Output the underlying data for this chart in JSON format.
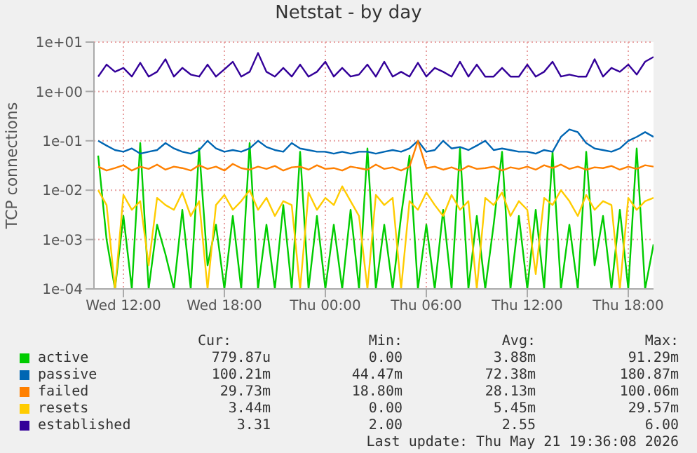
{
  "chart_data": {
    "type": "line",
    "title": "Netstat - by day",
    "ylabel": "TCP connections",
    "log": "y",
    "grid": true,
    "legend": "bottom",
    "x": [
      "2026-05-20T10:30",
      "2026-05-20T11:00",
      "2026-05-20T11:30",
      "2026-05-20T12:00",
      "2026-05-20T12:30",
      "2026-05-20T13:00",
      "2026-05-20T13:30",
      "2026-05-20T14:00",
      "2026-05-20T14:30",
      "2026-05-20T15:00",
      "2026-05-20T15:30",
      "2026-05-20T16:00",
      "2026-05-20T16:30",
      "2026-05-20T17:00",
      "2026-05-20T17:30",
      "2026-05-20T18:00",
      "2026-05-20T18:30",
      "2026-05-20T19:00",
      "2026-05-20T19:30",
      "2026-05-20T20:00",
      "2026-05-20T20:30",
      "2026-05-20T21:00",
      "2026-05-20T21:30",
      "2026-05-20T22:00",
      "2026-05-20T22:30",
      "2026-05-20T23:00",
      "2026-05-20T23:30",
      "2026-05-21T00:00",
      "2026-05-21T00:30",
      "2026-05-21T01:00",
      "2026-05-21T01:30",
      "2026-05-21T02:00",
      "2026-05-21T02:30",
      "2026-05-21T03:00",
      "2026-05-21T03:30",
      "2026-05-21T04:00",
      "2026-05-21T04:30",
      "2026-05-21T05:00",
      "2026-05-21T05:30",
      "2026-05-21T06:00",
      "2026-05-21T06:30",
      "2026-05-21T07:00",
      "2026-05-21T07:30",
      "2026-05-21T08:00",
      "2026-05-21T08:30",
      "2026-05-21T09:00",
      "2026-05-21T09:30",
      "2026-05-21T10:00",
      "2026-05-21T10:30",
      "2026-05-21T11:00",
      "2026-05-21T11:30",
      "2026-05-21T12:00",
      "2026-05-21T12:30",
      "2026-05-21T13:00",
      "2026-05-21T13:30",
      "2026-05-21T14:00",
      "2026-05-21T14:30",
      "2026-05-21T15:00",
      "2026-05-21T15:30",
      "2026-05-21T16:00",
      "2026-05-21T16:30",
      "2026-05-21T17:00",
      "2026-05-21T17:30",
      "2026-05-21T18:00",
      "2026-05-21T18:30",
      "2026-05-21T19:00",
      "2026-05-21T19:30"
    ],
    "xlim": [
      "2026-05-20T10:15",
      "2026-05-21T19:30"
    ],
    "xticks": [
      {
        "value": "2026-05-20T12:00",
        "label": "Wed 12:00"
      },
      {
        "value": "2026-05-20T18:00",
        "label": "Wed 18:00"
      },
      {
        "value": "2026-05-21T00:00",
        "label": "Thu 00:00"
      },
      {
        "value": "2026-05-21T06:00",
        "label": "Thu 06:00"
      },
      {
        "value": "2026-05-21T12:00",
        "label": "Thu 12:00"
      },
      {
        "value": "2026-05-21T18:00",
        "label": "Thu 18:00"
      }
    ],
    "ylim": [
      0.0001,
      10
    ],
    "yticks": [
      {
        "value": 0.0001,
        "label": "1e-04"
      },
      {
        "value": 0.001,
        "label": "1e-03"
      },
      {
        "value": 0.01,
        "label": "1e-02"
      },
      {
        "value": 0.1,
        "label": "1e-01"
      },
      {
        "value": 1,
        "label": "1e+00"
      },
      {
        "value": 10,
        "label": "1e+01"
      }
    ],
    "series": [
      {
        "name": "active",
        "color": "#00cc00",
        "values": [
          0.05,
          0.001,
          0.0001,
          0.003,
          0.0001,
          0.09,
          0.0001,
          0.002,
          0.0005,
          0.0001,
          0.004,
          0.0001,
          0.07,
          0.0003,
          0.002,
          0.0001,
          0.003,
          0.0001,
          0.09,
          0.0001,
          0.002,
          0.0001,
          0.005,
          0.0001,
          0.06,
          0.0001,
          0.003,
          0.0001,
          0.002,
          0.0001,
          0.004,
          0.0001,
          0.07,
          0.0001,
          0.002,
          0.0001,
          0.003,
          0.05,
          0.0001,
          0.002,
          0.0001,
          0.004,
          0.0001,
          0.07,
          0.0001,
          0.003,
          0.0001,
          0.002,
          0.06,
          0.0001,
          0.003,
          0.0001,
          0.004,
          0.0001,
          0.06,
          0.0001,
          0.002,
          0.0001,
          0.06,
          0.0003,
          0.003,
          0.0001,
          0.004,
          0.0001,
          0.07,
          0.0001,
          0.0008
        ]
      },
      {
        "name": "passive",
        "color": "#0066b3",
        "values": [
          0.1,
          0.08,
          0.065,
          0.06,
          0.07,
          0.055,
          0.06,
          0.065,
          0.09,
          0.07,
          0.06,
          0.055,
          0.065,
          0.1,
          0.07,
          0.06,
          0.065,
          0.06,
          0.07,
          0.1,
          0.075,
          0.065,
          0.06,
          0.09,
          0.07,
          0.065,
          0.06,
          0.06,
          0.055,
          0.06,
          0.055,
          0.06,
          0.06,
          0.055,
          0.06,
          0.065,
          0.06,
          0.07,
          0.1,
          0.06,
          0.065,
          0.1,
          0.07,
          0.075,
          0.065,
          0.08,
          0.1,
          0.065,
          0.07,
          0.065,
          0.06,
          0.06,
          0.055,
          0.065,
          0.06,
          0.12,
          0.17,
          0.15,
          0.09,
          0.07,
          0.065,
          0.06,
          0.07,
          0.1,
          0.12,
          0.15,
          0.12
        ]
      },
      {
        "name": "failed",
        "color": "#ff8000",
        "values": [
          0.03,
          0.025,
          0.028,
          0.032,
          0.025,
          0.03,
          0.027,
          0.033,
          0.026,
          0.03,
          0.028,
          0.025,
          0.032,
          0.027,
          0.03,
          0.025,
          0.034,
          0.028,
          0.026,
          0.03,
          0.027,
          0.031,
          0.025,
          0.029,
          0.03,
          0.026,
          0.032,
          0.027,
          0.028,
          0.025,
          0.03,
          0.028,
          0.026,
          0.033,
          0.027,
          0.029,
          0.025,
          0.03,
          0.1,
          0.028,
          0.03,
          0.026,
          0.029,
          0.025,
          0.031,
          0.027,
          0.028,
          0.03,
          0.025,
          0.029,
          0.027,
          0.03,
          0.026,
          0.032,
          0.028,
          0.033,
          0.027,
          0.03,
          0.026,
          0.029,
          0.028,
          0.031,
          0.026,
          0.03,
          0.027,
          0.032,
          0.03
        ]
      },
      {
        "name": "resets",
        "color": "#ffcc00",
        "values": [
          0.01,
          0.005,
          0.0001,
          0.008,
          0.004,
          0.006,
          0.0003,
          0.007,
          0.005,
          0.004,
          0.009,
          0.003,
          0.006,
          0.0001,
          0.005,
          0.008,
          0.004,
          0.006,
          0.01,
          0.004,
          0.007,
          0.003,
          0.006,
          0.005,
          0.0001,
          0.009,
          0.004,
          0.007,
          0.005,
          0.012,
          0.006,
          0.003,
          0.0001,
          0.008,
          0.005,
          0.007,
          0.0001,
          0.006,
          0.004,
          0.009,
          0.005,
          0.003,
          0.008,
          0.004,
          0.006,
          0.0001,
          0.007,
          0.005,
          0.009,
          0.003,
          0.006,
          0.004,
          0.0002,
          0.007,
          0.005,
          0.01,
          0.006,
          0.003,
          0.008,
          0.004,
          0.006,
          0.005,
          0.0001,
          0.007,
          0.004,
          0.006,
          0.007
        ]
      },
      {
        "name": "established",
        "color": "#330099",
        "values": [
          2,
          3.5,
          2.5,
          3,
          2,
          3.8,
          2,
          2.5,
          4.5,
          2,
          3,
          2.2,
          2,
          3.5,
          2,
          2.8,
          4,
          2,
          2.5,
          6,
          2.5,
          2,
          3,
          2,
          3.5,
          2,
          2.5,
          4,
          2,
          3,
          2,
          2.2,
          3.5,
          2,
          4,
          2,
          2.5,
          2,
          3.8,
          2,
          3,
          2.5,
          2,
          4,
          2,
          3.5,
          2,
          2,
          3,
          2,
          2,
          3.5,
          2,
          2.5,
          4,
          2,
          2.2,
          2,
          2,
          4.5,
          2,
          3,
          2.5,
          3.5,
          2.2,
          4,
          5
        ]
      }
    ],
    "annotations": [
      "Cur:",
      "Min:",
      "Avg:",
      "Max:",
      "779.87u",
      "0.00",
      "3.88m",
      "91.29m",
      "100.21m",
      "44.47m",
      "72.38m",
      "180.87m",
      "29.73m",
      "18.80m",
      "28.13m",
      "100.06m",
      "3.44m",
      "0.00",
      "5.45m",
      "29.57m",
      "3.31",
      "2.00",
      "2.55",
      "6.00",
      "Last update: Thu May 21 19:36:08 2026"
    ]
  }
}
